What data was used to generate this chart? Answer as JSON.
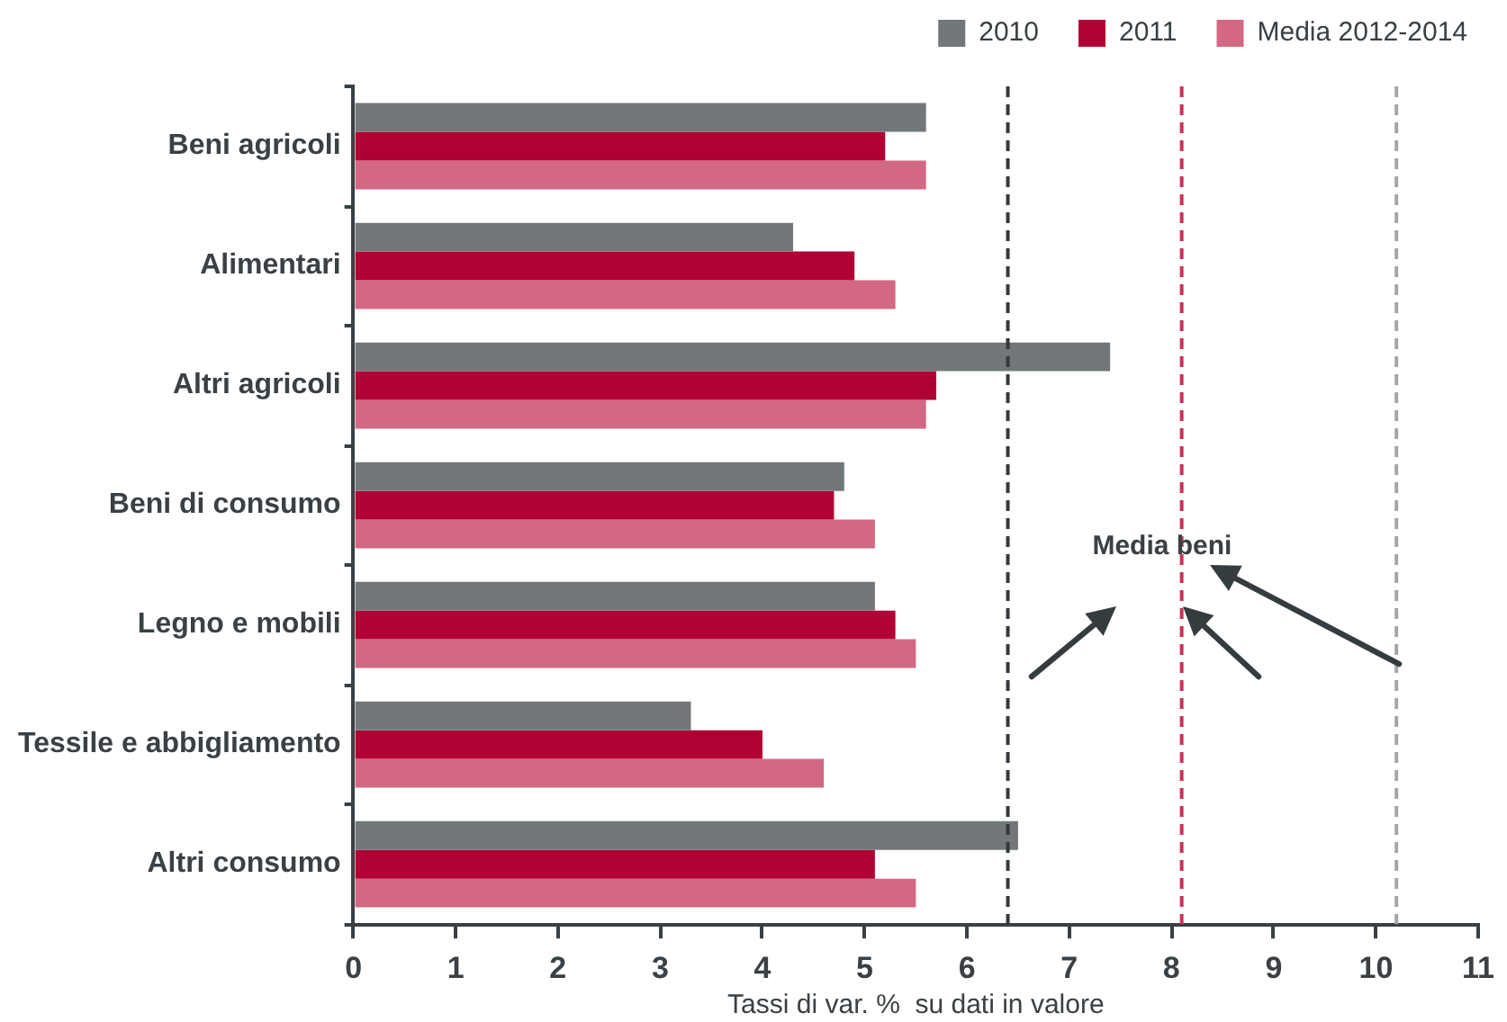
{
  "chart_data": {
    "type": "bar",
    "orientation": "horizontal",
    "categories": [
      "Beni agricoli",
      "Alimentari",
      "Altri agricoli",
      "Beni di consumo",
      "Legno e mobili",
      "Tessile e abbigliamento",
      "Altri consumo"
    ],
    "series": [
      {
        "name": "2010",
        "color": "#72777a",
        "values": [
          5.6,
          4.3,
          7.4,
          4.8,
          5.1,
          3.3,
          6.5
        ]
      },
      {
        "name": "2011",
        "color": "#b10033",
        "values": [
          5.2,
          4.9,
          5.7,
          4.7,
          5.3,
          4.0,
          5.1
        ]
      },
      {
        "name": "Media 2012-2014",
        "color": "#d26884",
        "values": [
          5.6,
          5.3,
          5.6,
          5.1,
          5.5,
          4.6,
          5.5
        ]
      }
    ],
    "xlabel": "Tassi di var. %  su dati in valore",
    "xlim": [
      0,
      11
    ],
    "xticks": [
      0,
      1,
      2,
      3,
      4,
      5,
      6,
      7,
      8,
      9,
      10,
      11
    ],
    "ref_lines": [
      {
        "axis": "x",
        "value": 6.4,
        "color": "#333a3f",
        "line_style": "dashed"
      },
      {
        "axis": "x",
        "value": 8.1,
        "color": "#c8325a",
        "line_style": "dashed"
      },
      {
        "axis": "x",
        "value": 10.2,
        "color": "#a6a6a6",
        "line_style": "dashed"
      }
    ],
    "annotations": [
      {
        "text": "Media beni",
        "x": 8.1
      }
    ],
    "grid": false,
    "legend": "top right"
  }
}
